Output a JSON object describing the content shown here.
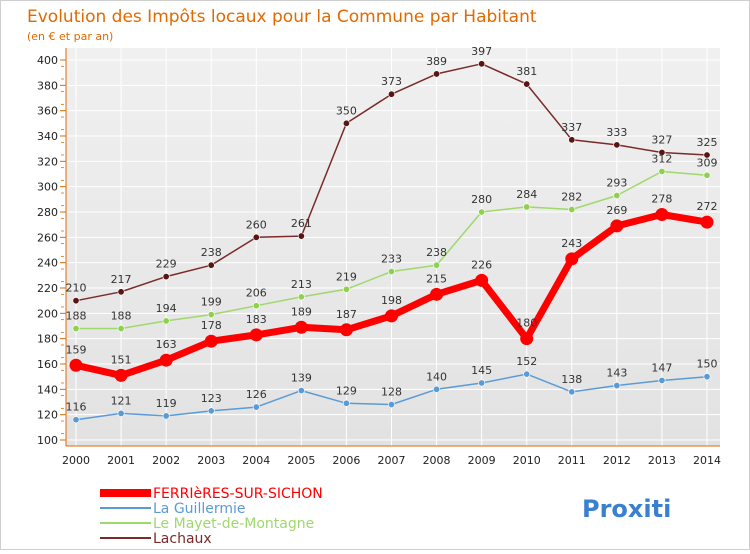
{
  "title": "Evolution des Impôts locaux pour la Commune par Habitant",
  "subtitle": "(en € et par an)",
  "brand": "Proxiti",
  "chart_data": {
    "type": "line",
    "x": [
      "2000",
      "2001",
      "2002",
      "2003",
      "2004",
      "2005",
      "2006",
      "2007",
      "2008",
      "2009",
      "2010",
      "2011",
      "2012",
      "2013",
      "2014"
    ],
    "ylim": [
      100,
      400
    ],
    "yticks": [
      100,
      120,
      140,
      160,
      180,
      200,
      220,
      240,
      260,
      280,
      300,
      320,
      340,
      360,
      380,
      400
    ],
    "grid": true,
    "legend_position": "bottom-left",
    "series": [
      {
        "name": "FERRIèRES-SUR-SICHON",
        "color": "#ff0000",
        "marker": "#ff0000",
        "width": 7,
        "values": [
          159,
          151,
          163,
          178,
          183,
          189,
          187,
          198,
          215,
          226,
          180,
          243,
          269,
          278,
          272
        ]
      },
      {
        "name": "La Guillermie",
        "color": "#5b9bd5",
        "marker": "#5b9bd5",
        "width": 1.5,
        "values": [
          116,
          121,
          119,
          123,
          126,
          139,
          129,
          128,
          140,
          145,
          152,
          138,
          143,
          147,
          150
        ]
      },
      {
        "name": "Le Mayet-de-Montagne",
        "color": "#9fd86b",
        "marker": "#8fd14f",
        "width": 1.5,
        "values": [
          188,
          188,
          194,
          199,
          206,
          213,
          219,
          233,
          238,
          280,
          284,
          282,
          293,
          312,
          309
        ]
      },
      {
        "name": "Lachaux",
        "color": "#7a2a2a",
        "marker": "#5a1414",
        "width": 1.5,
        "values": [
          210,
          217,
          229,
          238,
          260,
          261,
          350,
          373,
          389,
          397,
          381,
          337,
          333,
          327,
          325
        ]
      }
    ]
  }
}
